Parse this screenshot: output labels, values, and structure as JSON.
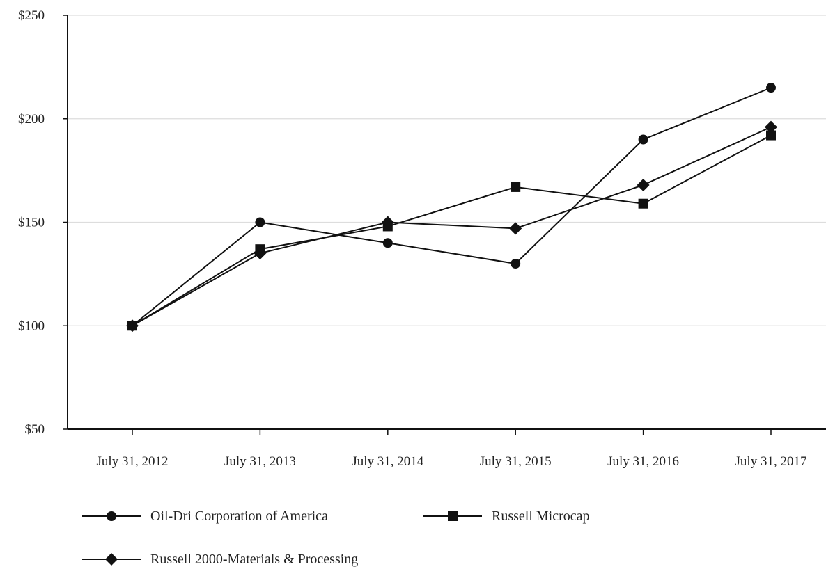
{
  "chart_data": {
    "type": "line",
    "categories": [
      "July 31, 2012",
      "July 31, 2013",
      "July 31, 2014",
      "July 31, 2015",
      "July 31, 2016",
      "July 31, 2017"
    ],
    "y_ticks": [
      "$50",
      "$100",
      "$150",
      "$200",
      "$250"
    ],
    "ylim": [
      50,
      250
    ],
    "grid": true,
    "legend_position": "bottom-left",
    "series": [
      {
        "name": "Oil-Dri Corporation of America",
        "marker": "circle",
        "values": [
          100,
          150,
          140,
          130,
          190,
          215
        ]
      },
      {
        "name": "Russell Microcap",
        "marker": "square",
        "values": [
          100,
          137,
          148,
          167,
          159,
          192
        ]
      },
      {
        "name": "Russell 2000-Materials & Processing",
        "marker": "diamond",
        "values": [
          100,
          135,
          150,
          147,
          168,
          196
        ]
      }
    ],
    "colors": {
      "line": "#111111",
      "grid": "#dddddd",
      "axis": "#111111"
    }
  }
}
